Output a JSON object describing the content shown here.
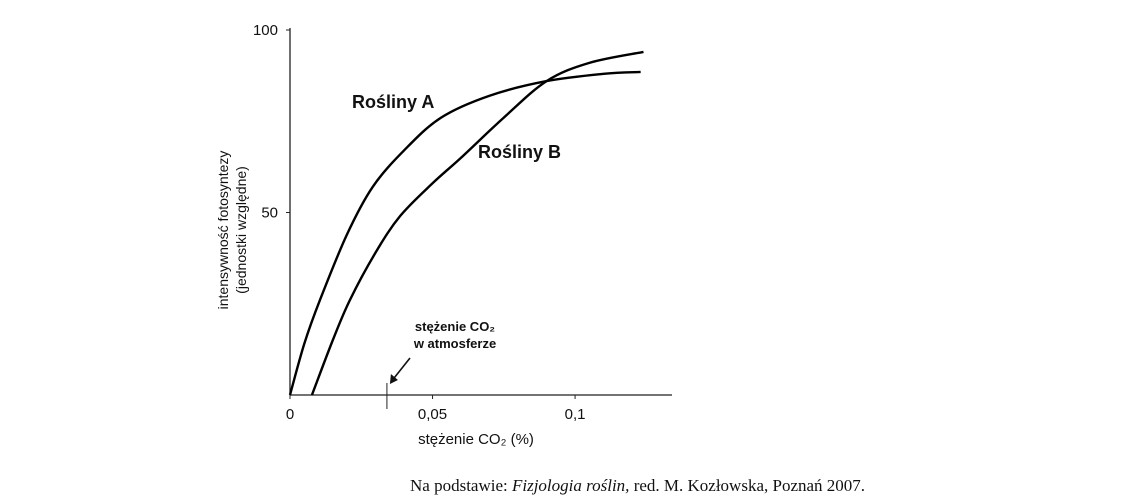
{
  "chart_data": {
    "type": "line",
    "x_label": "stężenie CO₂ (%)",
    "y_label": [
      "intensywność fotosyntezy",
      "(jednostki względne)"
    ],
    "series": [
      {
        "name": "Rośliny A",
        "color": "#000000",
        "x": [
          0,
          0.005,
          0.0105,
          0.02,
          0.029,
          0.04,
          0.053,
          0.07,
          0.09,
          0.11,
          0.123
        ],
        "values": [
          0,
          14,
          26,
          44,
          57,
          67,
          76,
          82,
          86,
          88,
          88.5
        ]
      },
      {
        "name": "Rośliny B",
        "color": "#000000",
        "x": [
          0.0077,
          0.015,
          0.021,
          0.03,
          0.0386,
          0.05,
          0.06,
          0.075,
          0.09,
          0.105,
          0.124
        ],
        "values": [
          0,
          15,
          26,
          39,
          49,
          58,
          65,
          76,
          86,
          91,
          94
        ]
      }
    ],
    "xlim": [
      0,
      0.134
    ],
    "ylim": [
      0,
      100
    ],
    "xticks": [
      0,
      {
        "value": 0.05,
        "label": "0,05"
      },
      {
        "value": 0.1,
        "label": "0,1"
      }
    ],
    "yticks": [
      50,
      100
    ],
    "annotation": {
      "text": [
        "stężenie CO₂",
        "w atmosferze"
      ],
      "x": 0.034
    },
    "source": {
      "prefix": "Na podstawie: ",
      "title": "Fizjologia roślin,",
      "rest": " red. M. Kozłowska, Poznań 2007."
    }
  }
}
